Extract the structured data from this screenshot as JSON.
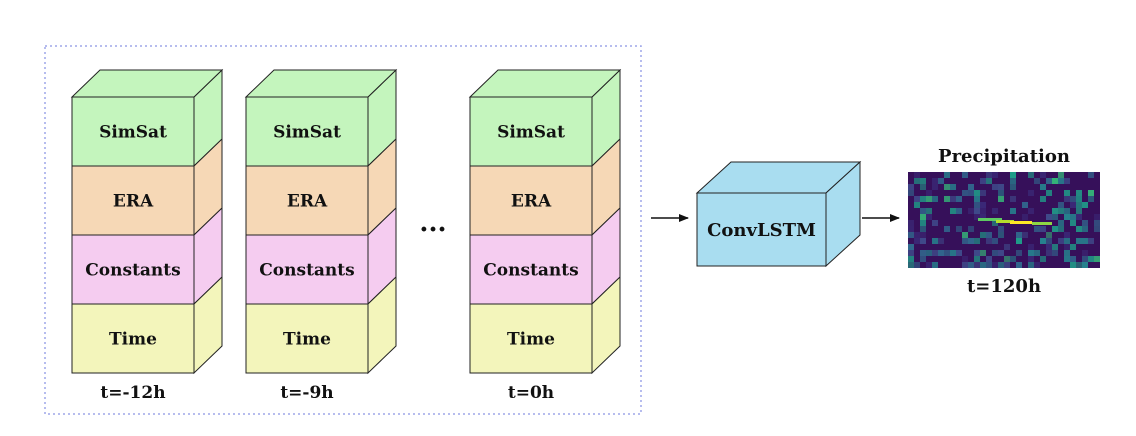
{
  "stacks": [
    {
      "time_label": "t=-12h",
      "layers": [
        "SimSat",
        "ERA",
        "Constants",
        "Time"
      ]
    },
    {
      "time_label": "t=-9h",
      "layers": [
        "SimSat",
        "ERA",
        "Constants",
        "Time"
      ]
    },
    {
      "time_label": "t=0h",
      "layers": [
        "SimSat",
        "ERA",
        "Constants",
        "Time"
      ]
    }
  ],
  "ellipsis": "···",
  "model": {
    "label": "ConvLSTM"
  },
  "output": {
    "title": "Precipitation",
    "time_label": "t=120h"
  },
  "colors": {
    "layer_SimSat": "#c4f5bd",
    "layer_ERA": "#f6d8b6",
    "layer_Constants": "#f5ccf0",
    "layer_Time": "#f3f5bb",
    "model_box": "#a9ddf0",
    "input_frame": "#9ea6e8",
    "heatmap_bg": "#36105a"
  }
}
